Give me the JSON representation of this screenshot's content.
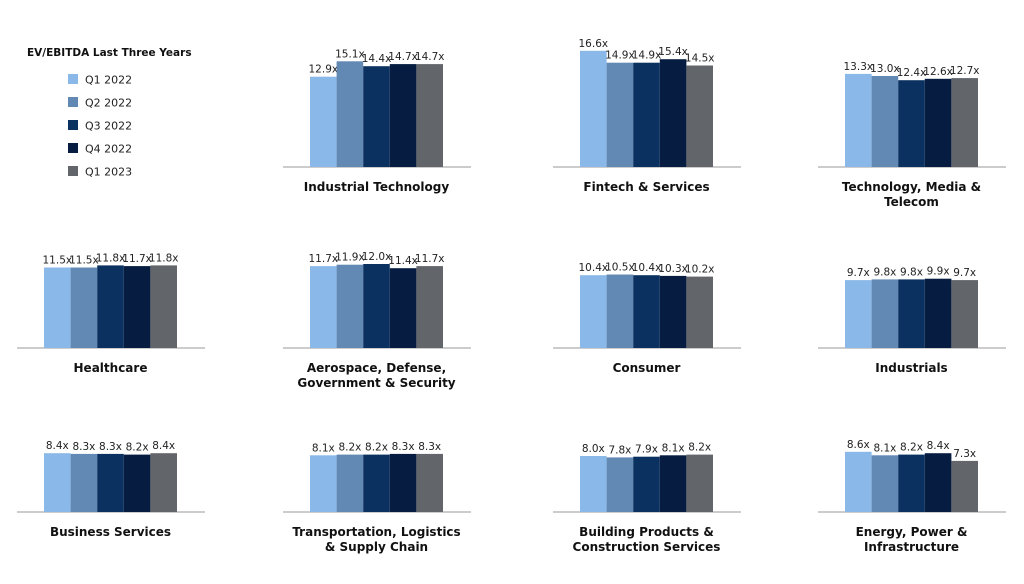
{
  "chart_data": {
    "type": "bar",
    "title": "EV/EBITDA Last Three Years",
    "legend_placement": "top-left",
    "grid": false,
    "value_suffix": "x",
    "series_names": [
      "Q1 2022",
      "Q2 2022",
      "Q3 2022",
      "Q4 2022",
      "Q1 2023"
    ],
    "colors": [
      "#8ab8e8",
      "#6288b4",
      "#0a3160",
      "#061d41",
      "#626569"
    ],
    "ylim": [
      0,
      17
    ],
    "panels": [
      {
        "title": [
          "Industrial Technology"
        ],
        "values": [
          12.9,
          15.1,
          14.4,
          14.7,
          14.7
        ]
      },
      {
        "title": [
          "Fintech & Services"
        ],
        "values": [
          16.6,
          14.9,
          14.9,
          15.4,
          14.5
        ]
      },
      {
        "title": [
          "Technology, Media &",
          "Telecom"
        ],
        "values": [
          13.3,
          13.0,
          12.4,
          12.6,
          12.7
        ]
      },
      {
        "title": [
          "Healthcare"
        ],
        "values": [
          11.5,
          11.5,
          11.8,
          11.7,
          11.8
        ]
      },
      {
        "title": [
          "Aerospace, Defense,",
          "Government & Security"
        ],
        "values": [
          11.7,
          11.9,
          12.0,
          11.4,
          11.7
        ]
      },
      {
        "title": [
          "Consumer"
        ],
        "values": [
          10.4,
          10.5,
          10.4,
          10.3,
          10.2
        ]
      },
      {
        "title": [
          "Industrials"
        ],
        "values": [
          9.7,
          9.8,
          9.8,
          9.9,
          9.7
        ]
      },
      {
        "title": [
          "Business Services"
        ],
        "values": [
          8.4,
          8.3,
          8.3,
          8.2,
          8.4
        ]
      },
      {
        "title": [
          "Transportation, Logistics",
          "& Supply Chain"
        ],
        "values": [
          8.1,
          8.2,
          8.2,
          8.3,
          8.3
        ]
      },
      {
        "title": [
          "Building Products &",
          "Construction Services"
        ],
        "values": [
          8.0,
          7.8,
          7.9,
          8.1,
          8.2
        ]
      },
      {
        "title": [
          "Energy, Power &",
          "Infrastructure"
        ],
        "values": [
          8.6,
          8.1,
          8.2,
          8.4,
          7.3
        ]
      }
    ]
  }
}
